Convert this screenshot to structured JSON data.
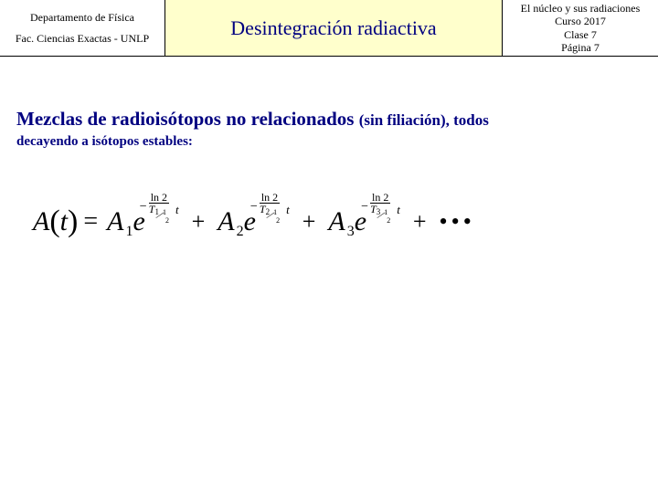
{
  "header": {
    "dept": "Departamento de Física",
    "fac": "Fac. Ciencias Exactas - UNLP",
    "title": "Desintegración radiactiva",
    "course_line1": "El núcleo y sus radiaciones",
    "course_line2": "Curso 2017",
    "course_line3": "Clase 7",
    "course_line4": "Página 7"
  },
  "body": {
    "heading_main": "Mezclas de radioisótopos no relacionados ",
    "heading_paren": "(sin filiación), todos",
    "subline": "decayendo a isótopos estables:"
  },
  "formula": {
    "A": "A",
    "t": "t",
    "eq": "=",
    "e": "e",
    "ln2": "ln 2",
    "plus": "+",
    "dots": "•••",
    "terms": [
      {
        "coef_sub": "1",
        "T_sub": "1"
      },
      {
        "coef_sub": "2",
        "T_sub": "2"
      },
      {
        "coef_sub": "3",
        "T_sub": "3"
      }
    ],
    "half_top": "1",
    "half_bot": "2",
    "Tsym": "T"
  },
  "style": {
    "title_color": "#000080",
    "header_bg": "#ffffcc"
  }
}
